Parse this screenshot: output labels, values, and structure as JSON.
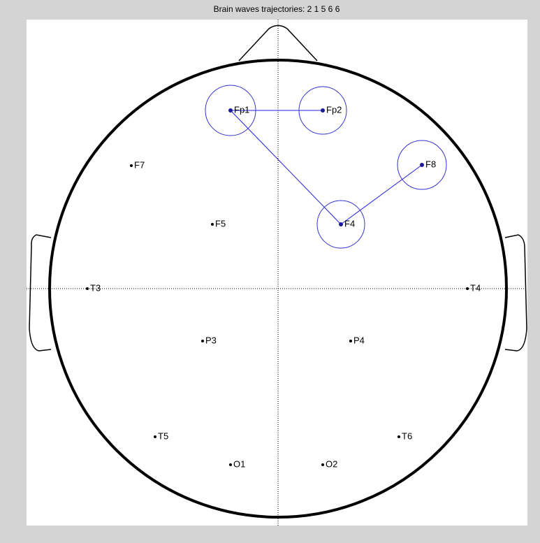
{
  "title": "Brain waves trajectories: 2 1 5 6 6",
  "nodes": [
    {
      "label": "Fp1"
    },
    {
      "label": "Fp2"
    },
    {
      "label": "F7"
    },
    {
      "label": "F8"
    },
    {
      "label": "F5"
    },
    {
      "label": "F4"
    },
    {
      "label": "T3"
    },
    {
      "label": "T4"
    },
    {
      "label": "P3"
    },
    {
      "label": "P4"
    },
    {
      "label": "T5"
    },
    {
      "label": "T6"
    },
    {
      "label": "O1"
    },
    {
      "label": "O2"
    }
  ]
}
